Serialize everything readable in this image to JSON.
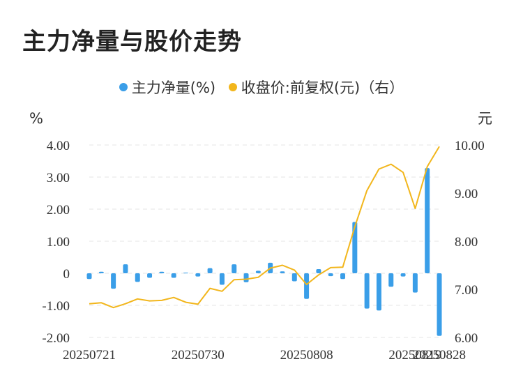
{
  "title": "主力净量与股价走势",
  "legend": {
    "bar_label": "主力净量(%)",
    "line_label": "收盘价:前复权(元)（右）"
  },
  "colors": {
    "bar": "#3a9ee8",
    "line": "#f2b61c",
    "grid": "#e6e6e6"
  },
  "chart_data": {
    "type": "bar+line",
    "y_left_unit": "%",
    "y_right_unit": "元",
    "y_left_ticks": [
      "4.00",
      "3.00",
      "2.00",
      "1.00",
      "0",
      "-1.00",
      "-2.00"
    ],
    "y_right_ticks": [
      "10.00",
      "9.00",
      "8.00",
      "7.00",
      "6.00"
    ],
    "ylim_left": [
      -2,
      4
    ],
    "ylim_right": [
      6,
      10
    ],
    "x_tick_labels": [
      "20250721",
      "20250730",
      "20250808",
      "20250819",
      "20250828"
    ],
    "x_tick_indices": [
      0,
      9,
      18,
      27,
      36
    ],
    "bar_values": [
      -0.18,
      0.05,
      -0.48,
      0.28,
      -0.27,
      -0.14,
      0.05,
      -0.14,
      0.02,
      -0.1,
      0.16,
      -0.36,
      0.28,
      -0.28,
      0.08,
      0.33,
      0.06,
      -0.25,
      -0.8,
      0.13,
      -0.09,
      -0.18,
      1.6,
      -1.1,
      -1.16,
      -0.42,
      -0.1,
      -0.6,
      3.28,
      -1.95
    ],
    "bar_indices": [
      0,
      1,
      2,
      3,
      4,
      5,
      6,
      7,
      8,
      9,
      10,
      11,
      12,
      13,
      14,
      15,
      16,
      17,
      18,
      19,
      20,
      21,
      22,
      23,
      24,
      25,
      26,
      27,
      28,
      29
    ],
    "close_prices": [
      6.7,
      6.72,
      6.62,
      6.7,
      6.8,
      6.76,
      6.77,
      6.83,
      6.73,
      6.69,
      7.02,
      6.96,
      7.2,
      7.21,
      7.25,
      7.44,
      7.5,
      7.4,
      7.1,
      7.3,
      7.45,
      7.46,
      8.3,
      9.05,
      9.5,
      9.6,
      9.43,
      8.68,
      9.55,
      9.97
    ]
  }
}
